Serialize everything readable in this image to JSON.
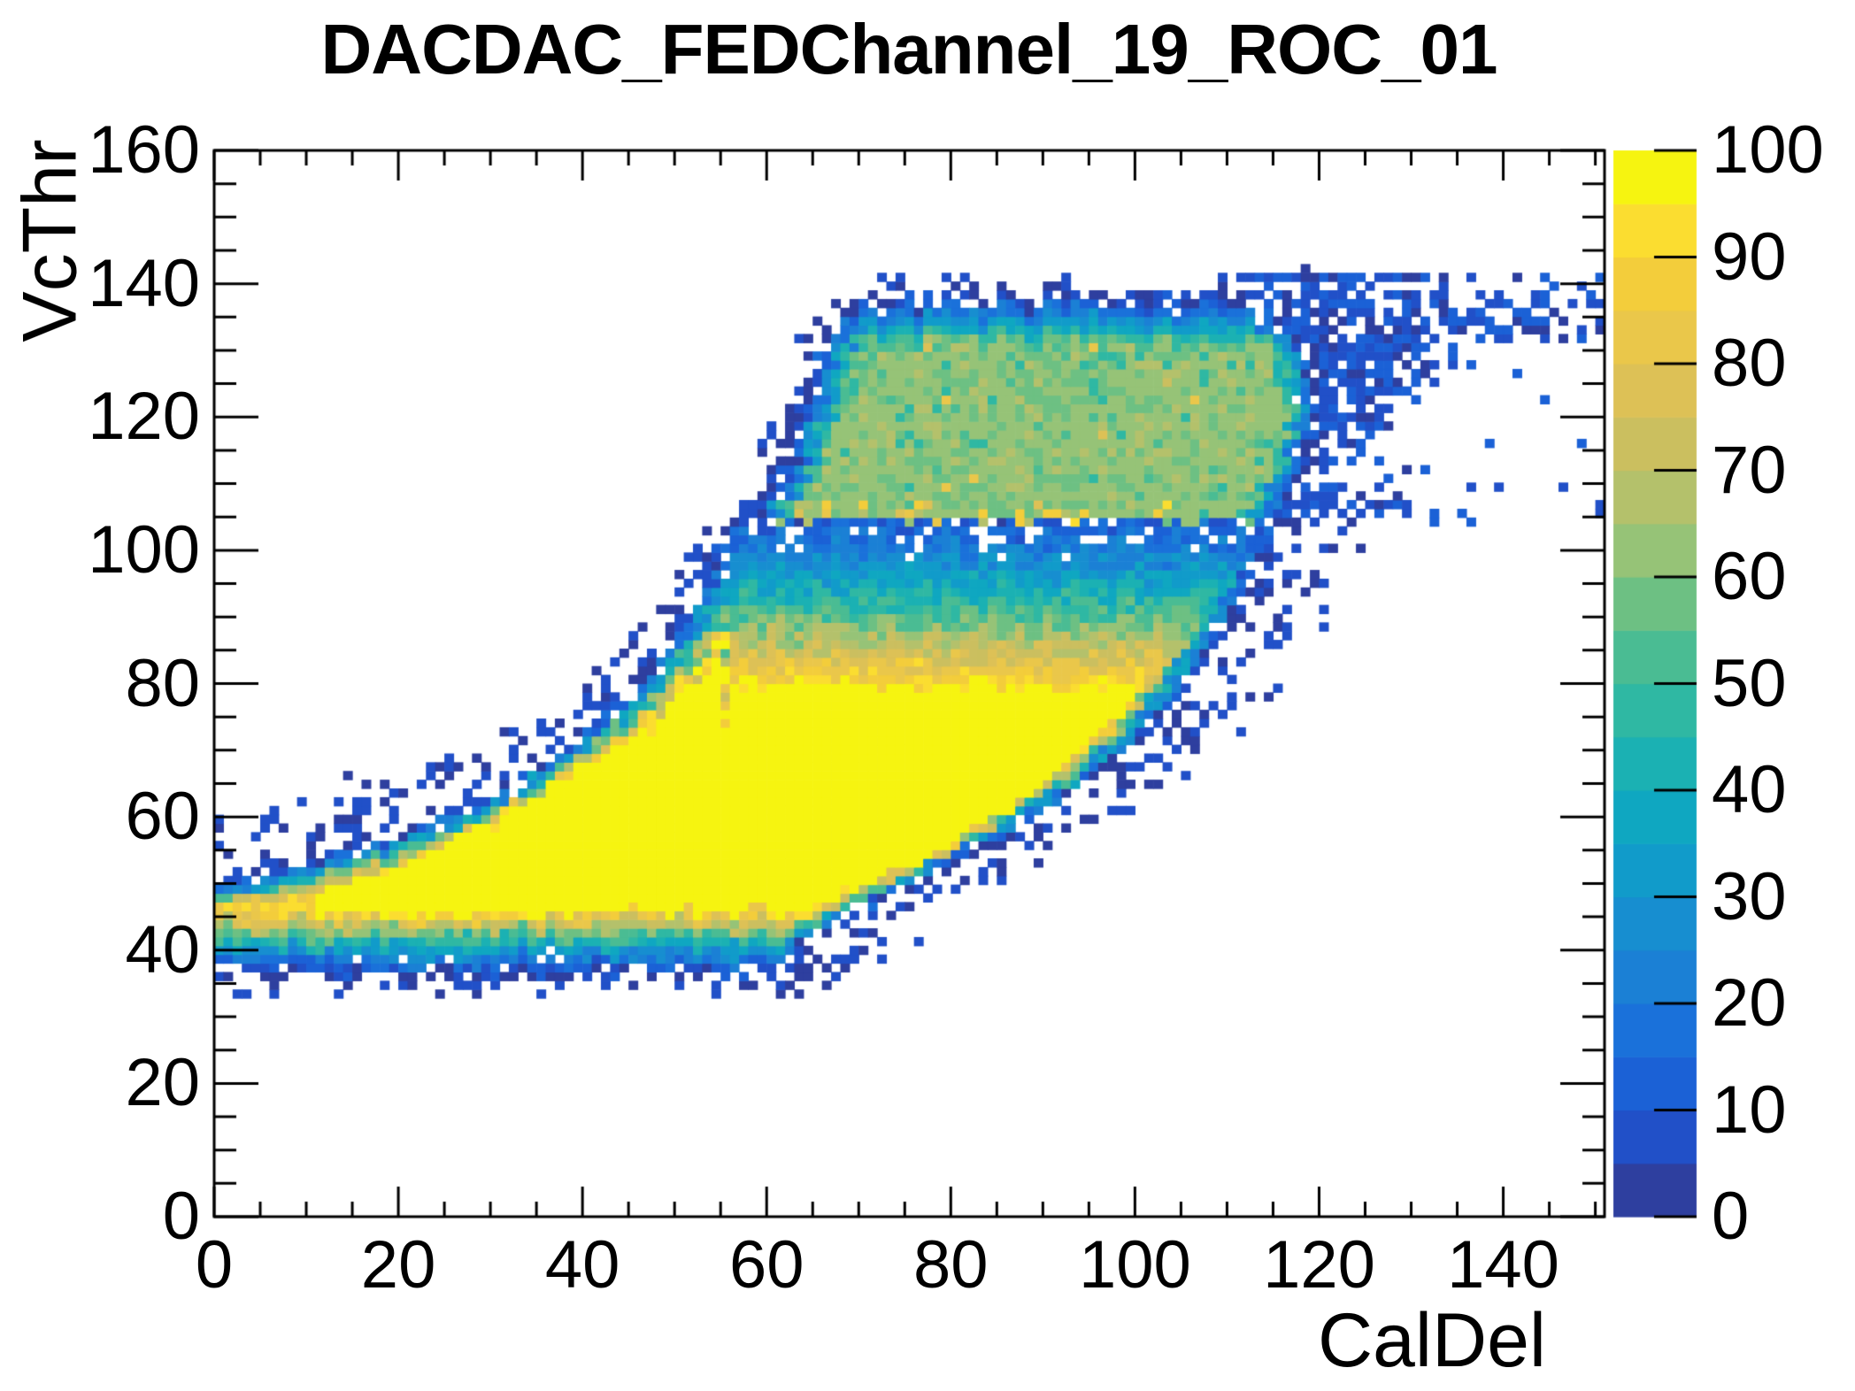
{
  "title": "DACDAC_FEDChannel_19_ROC_01",
  "chart_data": {
    "type": "heatmap",
    "title": "DACDAC_FEDChannel_19_ROC_01",
    "xlabel": "CalDel",
    "ylabel": "VcThr",
    "xlim": [
      0,
      151
    ],
    "ylim": [
      0,
      160
    ],
    "zlim": [
      0,
      100
    ],
    "x_major_ticks": [
      0,
      20,
      40,
      60,
      80,
      100,
      120,
      140
    ],
    "y_major_ticks": [
      0,
      20,
      40,
      60,
      80,
      100,
      120,
      140,
      160
    ],
    "z_ticks": [
      0,
      10,
      20,
      30,
      40,
      50,
      60,
      70,
      80,
      90,
      100
    ],
    "minor_tick_step": 5,
    "legend_position": "right-palette-bar",
    "grid": false,
    "palette_levels": 20,
    "palette_colors": [
      "#2e3f9f",
      "#2150c8",
      "#1b61d6",
      "#1a71da",
      "#1b80d5",
      "#178ed0",
      "#119bca",
      "#0fa7c1",
      "#1bb1b3",
      "#2fb8a3",
      "#4abc93",
      "#6dc083",
      "#96c377",
      "#b4c16b",
      "#cbbf5f",
      "#ddc156",
      "#eac74a",
      "#f3cd3b",
      "#fbdd30",
      "#f6f410"
    ],
    "bin_size": {
      "dx": 1.0,
      "dy": 1.3115
    },
    "plateau_value": 100,
    "upper_plateau_value": 62,
    "upper_plateau_y_range": [
      105,
      133
    ],
    "regions": {
      "bottom_zero_y": 35.3,
      "bottom_fade_width": 11,
      "left_top_zero_curve": [
        [
          0,
          51
        ],
        [
          4,
          51.8
        ],
        [
          8,
          52.8
        ],
        [
          12,
          54.2
        ],
        [
          16,
          55.8
        ],
        [
          20,
          57.6
        ],
        [
          24,
          59.8
        ],
        [
          28,
          62.4
        ],
        [
          32,
          65.4
        ],
        [
          36,
          68.8
        ],
        [
          40,
          72.8
        ],
        [
          44,
          77.8
        ],
        [
          47,
          82.5
        ],
        [
          50,
          88.5
        ],
        [
          52,
          93
        ],
        [
          54,
          99
        ],
        [
          55.5,
          104
        ],
        [
          56.5,
          110
        ]
      ],
      "right_zero_curve": [
        [
          34,
          58
        ],
        [
          38,
          62
        ],
        [
          42,
          66
        ],
        [
          46,
          70.5
        ],
        [
          50,
          76
        ],
        [
          54,
          82
        ],
        [
          58,
          87.5
        ],
        [
          62,
          92
        ],
        [
          66,
          96
        ],
        [
          70,
          99.5
        ],
        [
          74,
          102.5
        ],
        [
          78,
          105
        ],
        [
          82,
          107
        ],
        [
          86,
          109
        ],
        [
          90,
          110.8
        ],
        [
          95,
          112.8
        ],
        [
          100,
          114.3
        ],
        [
          105.8,
          115.8
        ]
      ],
      "side_fade_width": 5.5,
      "low_x_cap": [
        84,
        1.14,
        14
      ],
      "upper_left_zero_curve": [
        [
          104.6,
          56.5
        ],
        [
          107,
          59.5
        ],
        [
          110,
          61
        ],
        [
          114,
          62.3
        ],
        [
          118,
          63.2
        ],
        [
          122,
          64
        ],
        [
          126,
          64.8
        ],
        [
          130,
          65.8
        ],
        [
          133,
          67
        ],
        [
          136,
          68.8
        ],
        [
          139,
          71
        ],
        [
          141,
          73.5
        ]
      ],
      "upper_right_zero_curve": [
        [
          104.6,
          115
        ],
        [
          108,
          117
        ],
        [
          112,
          118.5
        ],
        [
          116,
          119.5
        ],
        [
          120,
          120
        ],
        [
          124,
          120
        ],
        [
          128,
          119
        ],
        [
          131,
          118
        ],
        [
          134,
          116
        ],
        [
          137,
          114
        ],
        [
          140,
          112
        ]
      ],
      "upper_top_zero_y": 139,
      "upper_top_fade_width": 8.5,
      "upper_side_fade_width": 4.5,
      "wing_blob_edge": [
        [
          111,
          121
        ],
        [
          116,
          124
        ],
        [
          121,
          127
        ],
        [
          126,
          131
        ],
        [
          131,
          134
        ]
      ],
      "wing_top_band_y": [
        131.5,
        140
      ],
      "wing_streak_y": [
        104.6,
        108.8
      ],
      "noise_seed": 7
    }
  }
}
